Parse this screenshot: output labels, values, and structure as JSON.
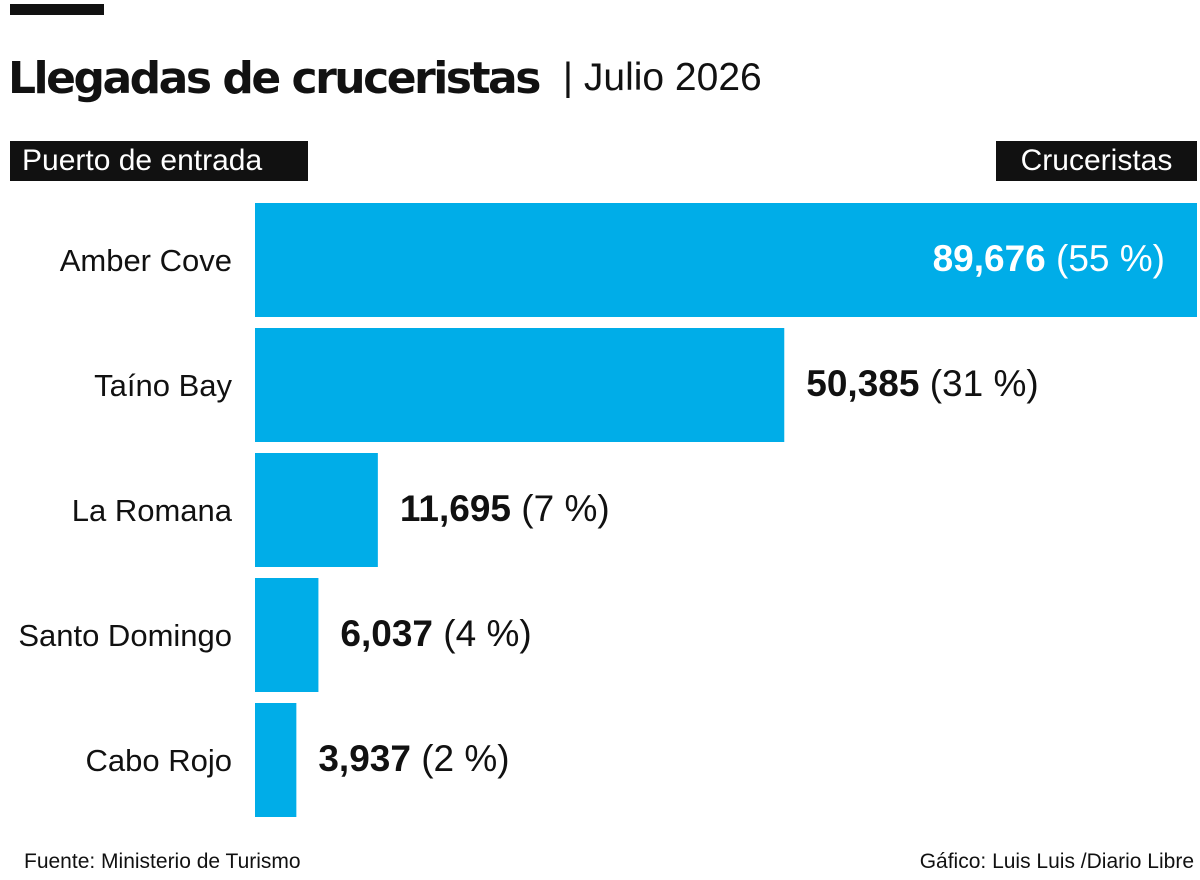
{
  "header": {
    "title": "Llegadas de cruceristas",
    "subtitle": "| Julio 2026"
  },
  "columns": {
    "category": "Puerto de entrada",
    "value": "Cruceristas"
  },
  "footer": {
    "source": "Fuente: Ministerio de Turismo",
    "credit": "Gáfico: Luis Luis /Diario Libre"
  },
  "colors": {
    "bar": "#00ADE8",
    "inside_label": "#FFFFFF",
    "outside_label": "#111111",
    "header_bg": "#111111"
  },
  "chart_data": {
    "type": "bar",
    "orientation": "horizontal",
    "categories": [
      "Amber Cove",
      "Taíno Bay",
      "La Romana",
      "Santo Domingo",
      "Cabo Rojo"
    ],
    "values": [
      89676,
      50385,
      11695,
      6037,
      3937
    ],
    "value_labels": [
      "89,676",
      "50,385",
      "11,695",
      "6,037",
      "3,937"
    ],
    "percent_labels": [
      "(55 %)",
      "(31 %)",
      "(7 %)",
      "(4 %)",
      "(2 %)"
    ],
    "xlim": [
      0,
      89676
    ],
    "grid": false,
    "legend": "none"
  }
}
